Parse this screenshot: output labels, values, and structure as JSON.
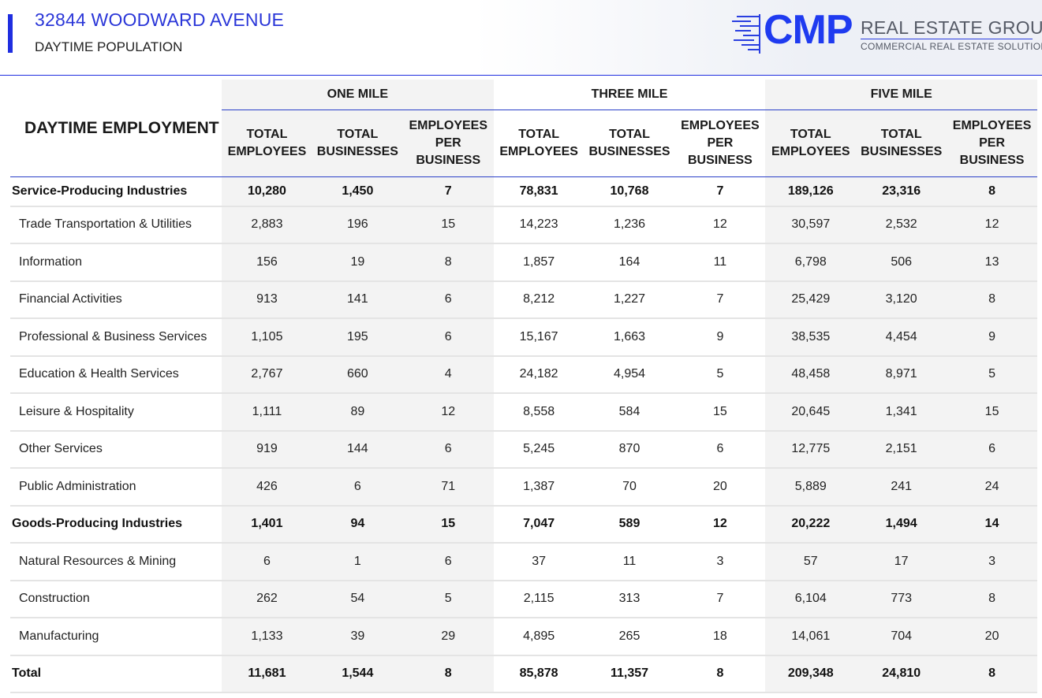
{
  "header": {
    "title": "32844 WOODWARD AVENUE",
    "subtitle": "DAYTIME POPULATION"
  },
  "logo": {
    "mark": "CMP",
    "name": "REAL ESTATE GROUP",
    "tagline": "COMMERCIAL REAL ESTATE SOLUTIONS",
    "brand_color": "#1f3bf0"
  },
  "table": {
    "section_title": "DAYTIME EMPLOYMENT",
    "groups": [
      "ONE MILE",
      "THREE MILE",
      "FIVE MILE"
    ],
    "subheaders": [
      [
        "TOTAL",
        "EMPLOYEES"
      ],
      [
        "TOTAL",
        "BUSINESSES"
      ],
      [
        "EMPLOYEES",
        "PER",
        "BUSINESS"
      ]
    ],
    "rows": [
      {
        "label": "Service-Producing Industries",
        "bold": true,
        "values": [
          "10,280",
          "1,450",
          "7",
          "78,831",
          "10,768",
          "7",
          "189,126",
          "23,316",
          "8"
        ]
      },
      {
        "label": "Trade Transportation & Utilities",
        "bold": false,
        "values": [
          "2,883",
          "196",
          "15",
          "14,223",
          "1,236",
          "12",
          "30,597",
          "2,532",
          "12"
        ]
      },
      {
        "label": "Information",
        "bold": false,
        "values": [
          "156",
          "19",
          "8",
          "1,857",
          "164",
          "11",
          "6,798",
          "506",
          "13"
        ]
      },
      {
        "label": "Financial Activities",
        "bold": false,
        "values": [
          "913",
          "141",
          "6",
          "8,212",
          "1,227",
          "7",
          "25,429",
          "3,120",
          "8"
        ]
      },
      {
        "label": "Professional & Business Services",
        "bold": false,
        "values": [
          "1,105",
          "195",
          "6",
          "15,167",
          "1,663",
          "9",
          "38,535",
          "4,454",
          "9"
        ]
      },
      {
        "label": "Education & Health Services",
        "bold": false,
        "values": [
          "2,767",
          "660",
          "4",
          "24,182",
          "4,954",
          "5",
          "48,458",
          "8,971",
          "5"
        ]
      },
      {
        "label": "Leisure & Hospitality",
        "bold": false,
        "values": [
          "1,111",
          "89",
          "12",
          "8,558",
          "584",
          "15",
          "20,645",
          "1,341",
          "15"
        ]
      },
      {
        "label": "Other Services",
        "bold": false,
        "values": [
          "919",
          "144",
          "6",
          "5,245",
          "870",
          "6",
          "12,775",
          "2,151",
          "6"
        ]
      },
      {
        "label": "Public Administration",
        "bold": false,
        "values": [
          "426",
          "6",
          "71",
          "1,387",
          "70",
          "20",
          "5,889",
          "241",
          "24"
        ]
      },
      {
        "label": "Goods-Producing Industries",
        "bold": true,
        "values": [
          "1,401",
          "94",
          "15",
          "7,047",
          "589",
          "12",
          "20,222",
          "1,494",
          "14"
        ]
      },
      {
        "label": "Natural Resources & Mining",
        "bold": false,
        "values": [
          "6",
          "1",
          "6",
          "37",
          "11",
          "3",
          "57",
          "17",
          "3"
        ]
      },
      {
        "label": "Construction",
        "bold": false,
        "values": [
          "262",
          "54",
          "5",
          "2,115",
          "313",
          "7",
          "6,104",
          "773",
          "8"
        ]
      },
      {
        "label": "Manufacturing",
        "bold": false,
        "values": [
          "1,133",
          "39",
          "29",
          "4,895",
          "265",
          "18",
          "14,061",
          "704",
          "20"
        ]
      },
      {
        "label": "Total",
        "bold": true,
        "values": [
          "11,681",
          "1,544",
          "8",
          "85,878",
          "11,357",
          "8",
          "209,348",
          "24,810",
          "8"
        ]
      }
    ]
  }
}
